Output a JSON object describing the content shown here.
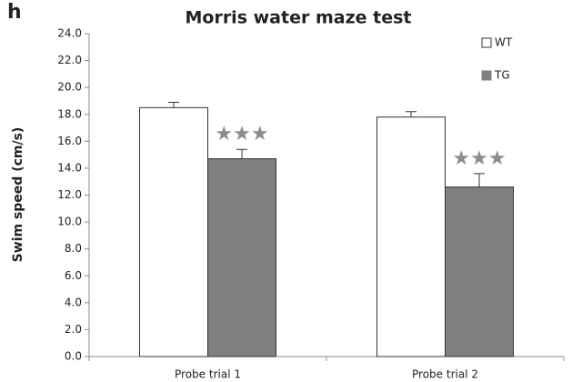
{
  "chart_data": {
    "type": "bar",
    "panel_label": "h",
    "title": "Morris water maze test",
    "ylabel": "Swim speed (cm/s)",
    "categories": [
      "Probe trial 1",
      "Probe trial 2"
    ],
    "series": [
      {
        "name": "WT",
        "color": "#ffffff",
        "values": [
          18.5,
          17.8
        ],
        "errors": [
          0.4,
          0.4
        ]
      },
      {
        "name": "TG",
        "color": "#7f7f7f",
        "values": [
          14.7,
          12.6
        ],
        "errors": [
          0.7,
          1.0
        ]
      }
    ],
    "annotations": [
      "★★★",
      "★★★"
    ],
    "ylim": [
      0,
      24
    ],
    "yticks": [
      {
        "value": 0,
        "label": "0.0"
      },
      {
        "value": 2,
        "label": "2.0"
      },
      {
        "value": 4,
        "label": "4.0"
      },
      {
        "value": 6,
        "label": "6.0"
      },
      {
        "value": 8,
        "label": "8.0"
      },
      {
        "value": 10,
        "label": "10.0"
      },
      {
        "value": 12,
        "label": "12.0"
      },
      {
        "value": 14,
        "label": "14.0"
      },
      {
        "value": 16,
        "label": "16.0"
      },
      {
        "value": 18,
        "label": "18.0"
      },
      {
        "value": 20,
        "label": "20.0"
      },
      {
        "value": 22,
        "label": "22.0"
      },
      {
        "value": 24,
        "label": "24.0"
      }
    ],
    "legend": "top-right"
  }
}
